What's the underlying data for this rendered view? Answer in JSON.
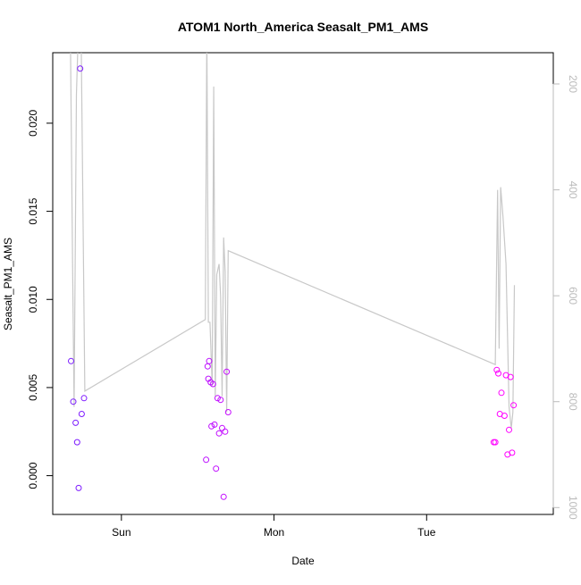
{
  "chart_data": {
    "type": "scatter",
    "title": "ATOM1 North_America Seasalt_PM1_AMS",
    "xlabel": "Date",
    "ylabel": "Seasalt_PM1_AMS",
    "x_ticks": [
      "Sun",
      "Mon",
      "Tue"
    ],
    "y_ticks": [
      "0.000",
      "0.005",
      "0.010",
      "0.015",
      "0.020"
    ],
    "y_tick_values": [
      0.0,
      0.005,
      0.01,
      0.015,
      0.02
    ],
    "y2_ticks": [
      "200",
      "400",
      "600",
      "800",
      "1000"
    ],
    "y2_tick_values": [
      200,
      400,
      600,
      800,
      1000
    ],
    "xlim": [
      -0.45,
      2.83
    ],
    "ylim": [
      -0.0022,
      0.024
    ],
    "y2lim": [
      1013,
      141
    ],
    "y2_reversed": true,
    "axis_color": "#000000",
    "secondary_axis_color": "#bbbbbb",
    "line_color": "#c8c8c8",
    "point_colors": {
      "start": "#7a1cff",
      "end": "#ff00ff"
    },
    "points": [
      {
        "x": -0.33,
        "y": 0.0065
      },
      {
        "x": -0.315,
        "y": 0.0042
      },
      {
        "x": -0.3,
        "y": 0.003
      },
      {
        "x": -0.29,
        "y": 0.0019
      },
      {
        "x": -0.28,
        "y": -0.0007
      },
      {
        "x": -0.27,
        "y": 0.0231
      },
      {
        "x": -0.26,
        "y": 0.0035
      },
      {
        "x": -0.245,
        "y": 0.0044
      },
      {
        "x": 0.555,
        "y": 0.0009
      },
      {
        "x": 0.565,
        "y": 0.0062
      },
      {
        "x": 0.57,
        "y": 0.0055
      },
      {
        "x": 0.575,
        "y": 0.0065
      },
      {
        "x": 0.585,
        "y": 0.0053
      },
      {
        "x": 0.59,
        "y": 0.0028
      },
      {
        "x": 0.6,
        "y": 0.0052
      },
      {
        "x": 0.61,
        "y": 0.0029
      },
      {
        "x": 0.62,
        "y": 0.0004
      },
      {
        "x": 0.63,
        "y": 0.0044
      },
      {
        "x": 0.64,
        "y": 0.0024
      },
      {
        "x": 0.65,
        "y": 0.0043
      },
      {
        "x": 0.66,
        "y": 0.0027
      },
      {
        "x": 0.67,
        "y": -0.0012
      },
      {
        "x": 0.68,
        "y": 0.0025
      },
      {
        "x": 0.69,
        "y": 0.0059
      },
      {
        "x": 0.7,
        "y": 0.0036
      },
      {
        "x": 2.44,
        "y": 0.0019
      },
      {
        "x": 2.45,
        "y": 0.0019
      },
      {
        "x": 2.46,
        "y": 0.006
      },
      {
        "x": 2.47,
        "y": 0.0058
      },
      {
        "x": 2.48,
        "y": 0.0035
      },
      {
        "x": 2.49,
        "y": 0.0047
      },
      {
        "x": 2.51,
        "y": 0.0034
      },
      {
        "x": 2.52,
        "y": 0.0057
      },
      {
        "x": 2.53,
        "y": 0.0012
      },
      {
        "x": 2.54,
        "y": 0.0026
      },
      {
        "x": 2.55,
        "y": 0.0056
      },
      {
        "x": 2.56,
        "y": 0.0013
      },
      {
        "x": 2.57,
        "y": 0.004
      }
    ],
    "line": [
      {
        "x": -0.335,
        "y2": 80
      },
      {
        "x": -0.32,
        "y2": 540
      },
      {
        "x": -0.31,
        "y2": 810
      },
      {
        "x": -0.295,
        "y2": 220
      },
      {
        "x": -0.28,
        "y2": 80
      },
      {
        "x": -0.265,
        "y2": 80
      },
      {
        "x": -0.24,
        "y2": 780
      },
      {
        "x": 0.55,
        "y2": 645
      },
      {
        "x": 0.56,
        "y2": 100
      },
      {
        "x": 0.57,
        "y2": 650
      },
      {
        "x": 0.58,
        "y2": 650
      },
      {
        "x": 0.595,
        "y2": 770
      },
      {
        "x": 0.605,
        "y2": 205
      },
      {
        "x": 0.615,
        "y2": 790
      },
      {
        "x": 0.625,
        "y2": 560
      },
      {
        "x": 0.64,
        "y2": 540
      },
      {
        "x": 0.65,
        "y2": 600
      },
      {
        "x": 0.66,
        "y2": 790
      },
      {
        "x": 0.67,
        "y2": 490
      },
      {
        "x": 0.68,
        "y2": 555
      },
      {
        "x": 0.69,
        "y2": 820
      },
      {
        "x": 0.7,
        "y2": 515
      },
      {
        "x": 2.45,
        "y2": 730
      },
      {
        "x": 2.465,
        "y2": 400
      },
      {
        "x": 2.475,
        "y2": 700
      },
      {
        "x": 2.485,
        "y2": 395
      },
      {
        "x": 2.5,
        "y2": 450
      },
      {
        "x": 2.52,
        "y2": 540
      },
      {
        "x": 2.54,
        "y2": 810
      },
      {
        "x": 2.555,
        "y2": 850
      },
      {
        "x": 2.565,
        "y2": 820
      },
      {
        "x": 2.575,
        "y2": 580
      }
    ]
  }
}
